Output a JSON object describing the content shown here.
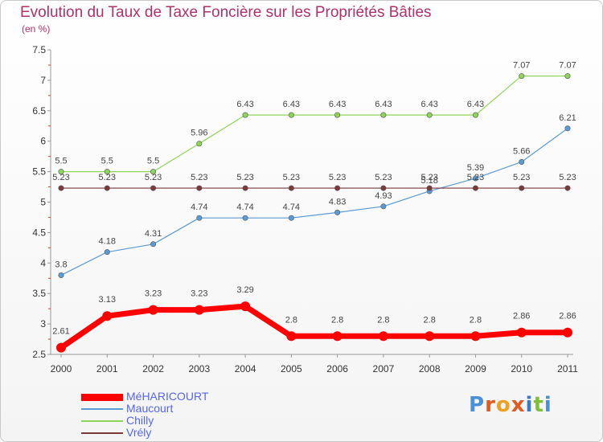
{
  "title": "Evolution du Taux de Taxe Foncière sur les Propriétés Bâties",
  "subtitle": "(en %)",
  "logo_text": "Proxiti",
  "chart_data": {
    "type": "line",
    "x": [
      "2000",
      "2001",
      "2002",
      "2003",
      "2004",
      "2005",
      "2006",
      "2007",
      "2008",
      "2009",
      "2010",
      "2011"
    ],
    "ylim": [
      2.5,
      7.5
    ],
    "yticks": [
      "2.5",
      "3",
      "3.5",
      "4",
      "4.5",
      "5",
      "5.5",
      "6",
      "6.5",
      "7",
      "7.5"
    ],
    "grid": false,
    "legend": "bottom-left",
    "series": [
      {
        "name": "MéHARICOURT",
        "color": "#ff0000",
        "values": [
          2.61,
          3.13,
          3.23,
          3.23,
          3.29,
          2.8,
          2.8,
          2.8,
          2.8,
          2.8,
          2.86,
          2.86
        ],
        "labels": [
          "2.61",
          "3.13",
          "3.23",
          "3.23",
          "3.29",
          "2.8",
          "2.8",
          "2.8",
          "2.8",
          "2.8",
          "2.86",
          "2.86"
        ]
      },
      {
        "name": "Maucourt",
        "color": "#5b9bd5",
        "values": [
          3.8,
          4.18,
          4.31,
          4.74,
          4.74,
          4.74,
          4.83,
          4.93,
          5.18,
          5.39,
          5.66,
          6.21
        ],
        "labels": [
          "3.8",
          "4.18",
          "4.31",
          "4.74",
          "4.74",
          "4.74",
          "4.83",
          "4.93",
          "5.18",
          "5.39",
          "5.66",
          "6.21"
        ]
      },
      {
        "name": "Chilly",
        "color": "#8fd45a",
        "values": [
          5.5,
          5.5,
          5.5,
          5.96,
          6.43,
          6.43,
          6.43,
          6.43,
          6.43,
          6.43,
          7.07,
          7.07
        ],
        "labels": [
          "5.5",
          "5.5",
          "5.5",
          "5.96",
          "6.43",
          "6.43",
          "6.43",
          "6.43",
          "6.43",
          "6.43",
          "7.07",
          "7.07"
        ]
      },
      {
        "name": "Vrély",
        "color": "#7a3a3a",
        "values": [
          5.23,
          5.23,
          5.23,
          5.23,
          5.23,
          5.23,
          5.23,
          5.23,
          5.23,
          5.23,
          5.23,
          5.23
        ],
        "labels": [
          "5.23",
          "5.23",
          "5.23",
          "5.23",
          "5.23",
          "5.23",
          "5.23",
          "5.23",
          "5.23",
          "5.23",
          "5.23",
          "5.23"
        ]
      }
    ]
  }
}
